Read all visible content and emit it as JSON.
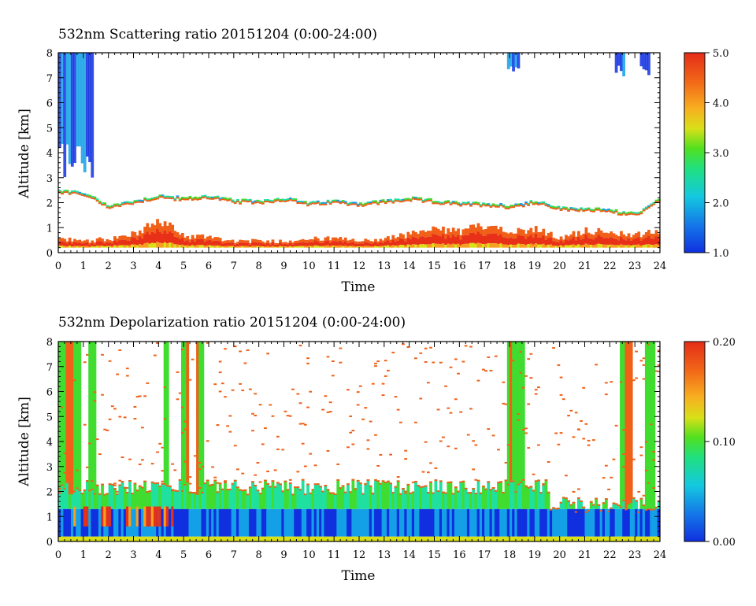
{
  "chart_data": [
    {
      "type": "heatmap",
      "title": "532nm Scattering ratio  20151204 (0:00-24:00)",
      "xlabel": "Time",
      "ylabel": "Altitude [km]",
      "xlim": [
        0,
        24
      ],
      "ylim": [
        0,
        8
      ],
      "xticks": [
        "0",
        "1",
        "2",
        "3",
        "4",
        "5",
        "6",
        "7",
        "8",
        "9",
        "10",
        "11",
        "12",
        "13",
        "14",
        "15",
        "16",
        "17",
        "18",
        "19",
        "20",
        "21",
        "22",
        "23",
        "24"
      ],
      "yticks": [
        "0",
        "1",
        "2",
        "3",
        "4",
        "5",
        "6",
        "7",
        "8"
      ],
      "colorbar": {
        "min": 1.0,
        "max": 5.0,
        "ticks": [
          "1.0",
          "2.0",
          "3.0",
          "4.0",
          "5.0"
        ]
      },
      "colormap": [
        "#1030e0",
        "#14a0e6",
        "#20e0a0",
        "#40dd30",
        "#d8e018",
        "#f5a020",
        "#f06018",
        "#e83018"
      ],
      "features": {
        "cloud_top_km": [
          [
            0,
            2.5
          ],
          [
            1,
            2.4
          ],
          [
            2,
            1.9
          ],
          [
            3,
            2.1
          ],
          [
            4,
            2.3
          ],
          [
            5,
            2.2
          ],
          [
            6,
            2.3
          ],
          [
            7,
            2.1
          ],
          [
            8,
            2.1
          ],
          [
            9,
            2.2
          ],
          [
            10,
            2.0
          ],
          [
            11,
            2.1
          ],
          [
            12,
            2.0
          ],
          [
            13,
            2.1
          ],
          [
            14,
            2.2
          ],
          [
            15,
            2.1
          ],
          [
            16,
            2.0
          ],
          [
            17,
            2.0
          ],
          [
            18,
            1.9
          ],
          [
            19,
            2.1
          ],
          [
            20,
            1.8
          ],
          [
            21,
            1.8
          ],
          [
            22,
            1.7
          ],
          [
            23,
            1.6
          ],
          [
            24,
            2.2
          ]
        ],
        "boundary_layer_top_km": [
          [
            0,
            0.6
          ],
          [
            1,
            0.5
          ],
          [
            2,
            0.6
          ],
          [
            3,
            0.8
          ],
          [
            4,
            1.4
          ],
          [
            5,
            0.7
          ],
          [
            6,
            0.7
          ],
          [
            7,
            0.5
          ],
          [
            8,
            0.5
          ],
          [
            9,
            0.5
          ],
          [
            10,
            0.6
          ],
          [
            11,
            0.6
          ],
          [
            12,
            0.5
          ],
          [
            13,
            0.6
          ],
          [
            14,
            0.8
          ],
          [
            15,
            1.0
          ],
          [
            16,
            0.9
          ],
          [
            17,
            1.2
          ],
          [
            18,
            1.0
          ],
          [
            19,
            1.0
          ],
          [
            20,
            0.6
          ],
          [
            21,
            1.0
          ],
          [
            22,
            0.8
          ],
          [
            23,
            0.8
          ],
          [
            24,
            0.9
          ]
        ],
        "high_cloud_scatter_ratio": 1.4
      }
    },
    {
      "type": "heatmap",
      "title": "532nm Depolarization ratio  20151204 (0:00-24:00)",
      "xlabel": "Time",
      "ylabel": "Altitude [km]",
      "xlim": [
        0,
        24
      ],
      "ylim": [
        0,
        8
      ],
      "xticks": [
        "0",
        "1",
        "2",
        "3",
        "4",
        "5",
        "6",
        "7",
        "8",
        "9",
        "10",
        "11",
        "12",
        "13",
        "14",
        "15",
        "16",
        "17",
        "18",
        "19",
        "20",
        "21",
        "22",
        "23",
        "24"
      ],
      "yticks": [
        "0",
        "1",
        "2",
        "3",
        "4",
        "5",
        "6",
        "7",
        "8"
      ],
      "colorbar": {
        "min": 0.0,
        "max": 0.2,
        "ticks": [
          "0.00",
          "0.10",
          "0.20"
        ]
      },
      "colormap": [
        "#1030e0",
        "#14a0e6",
        "#20e0a0",
        "#40dd30",
        "#d8e018",
        "#f5a020",
        "#f06018",
        "#e83018"
      ],
      "features": {
        "boundary_layer_top_km": 2.2,
        "noise_density": 0.04
      }
    }
  ]
}
